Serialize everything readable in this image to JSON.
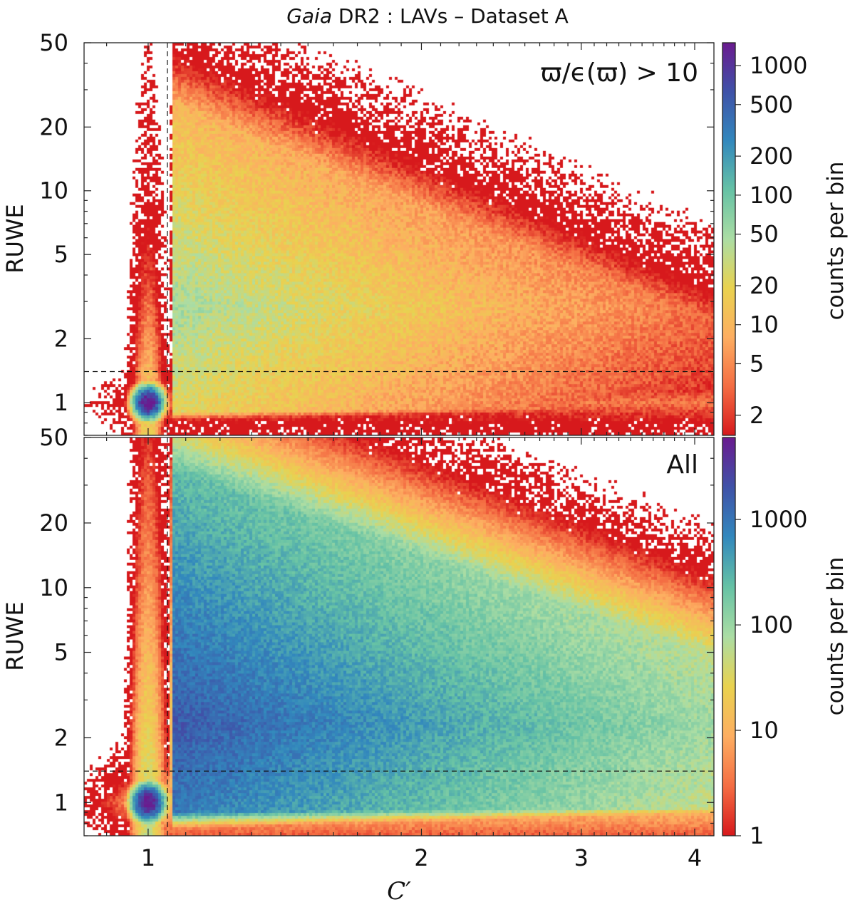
{
  "figure_title": {
    "italic": "Gaia",
    "rest": " DR2 : LAVs  –  Dataset A"
  },
  "colors": {
    "scale": [
      "#d7191c",
      "#f46d43",
      "#fdae61",
      "#e9d24f",
      "#abdda4",
      "#66c2a5",
      "#3288bd",
      "#3f52a8",
      "#6a1b8f"
    ]
  },
  "chart_data": [
    {
      "type": "heatmap",
      "panel": "top",
      "annotation": "ϖ/ϵ(ϖ) > 10",
      "ylabel": "RUWE",
      "xlabel": "",
      "xscale": "log",
      "yscale": "log",
      "xlim": [
        0.85,
        4.2
      ],
      "ylim": [
        0.7,
        50
      ],
      "yticks": [
        1,
        2,
        5,
        10,
        20,
        50
      ],
      "ytick_labels": [
        "1",
        "2",
        "5",
        "10",
        "20",
        "50"
      ],
      "xticks": [
        1,
        2,
        3,
        4
      ],
      "guides": {
        "vertical_x": 1.05,
        "horizontal_y": 1.4
      },
      "colorbar": {
        "label": "counts per bin",
        "scale": "log",
        "range": [
          1.4,
          1500
        ],
        "ticks": [
          2,
          5,
          10,
          20,
          50,
          100,
          200,
          500,
          1000
        ],
        "tick_labels": [
          "2",
          "5",
          "10",
          "20",
          "50",
          "100",
          "200",
          "500",
          "1000"
        ]
      },
      "density": {
        "peak_x": 1.0,
        "peak_y": 1.0,
        "peak_count": 1500
      }
    },
    {
      "type": "heatmap",
      "panel": "bottom",
      "annotation": "All",
      "ylabel": "RUWE",
      "xlabel": "C′",
      "xscale": "log",
      "yscale": "log",
      "xlim": [
        0.85,
        4.2
      ],
      "ylim": [
        0.7,
        50
      ],
      "yticks": [
        1,
        2,
        5,
        10,
        20,
        50
      ],
      "ytick_labels": [
        "1",
        "2",
        "5",
        "10",
        "20",
        "50"
      ],
      "xticks": [
        1,
        2,
        3,
        4
      ],
      "xtick_labels": [
        "1",
        "2",
        "3",
        "4"
      ],
      "guides": {
        "vertical_x": 1.05,
        "horizontal_y": 1.4
      },
      "colorbar": {
        "label": "counts per bin",
        "scale": "log",
        "range": [
          1,
          6000
        ],
        "ticks": [
          1,
          10,
          100,
          1000
        ],
        "tick_labels": [
          "1",
          "10",
          "100",
          "1000"
        ]
      },
      "density": {
        "peak_x": 1.0,
        "peak_y": 1.0,
        "peak_count": 6000
      }
    }
  ]
}
